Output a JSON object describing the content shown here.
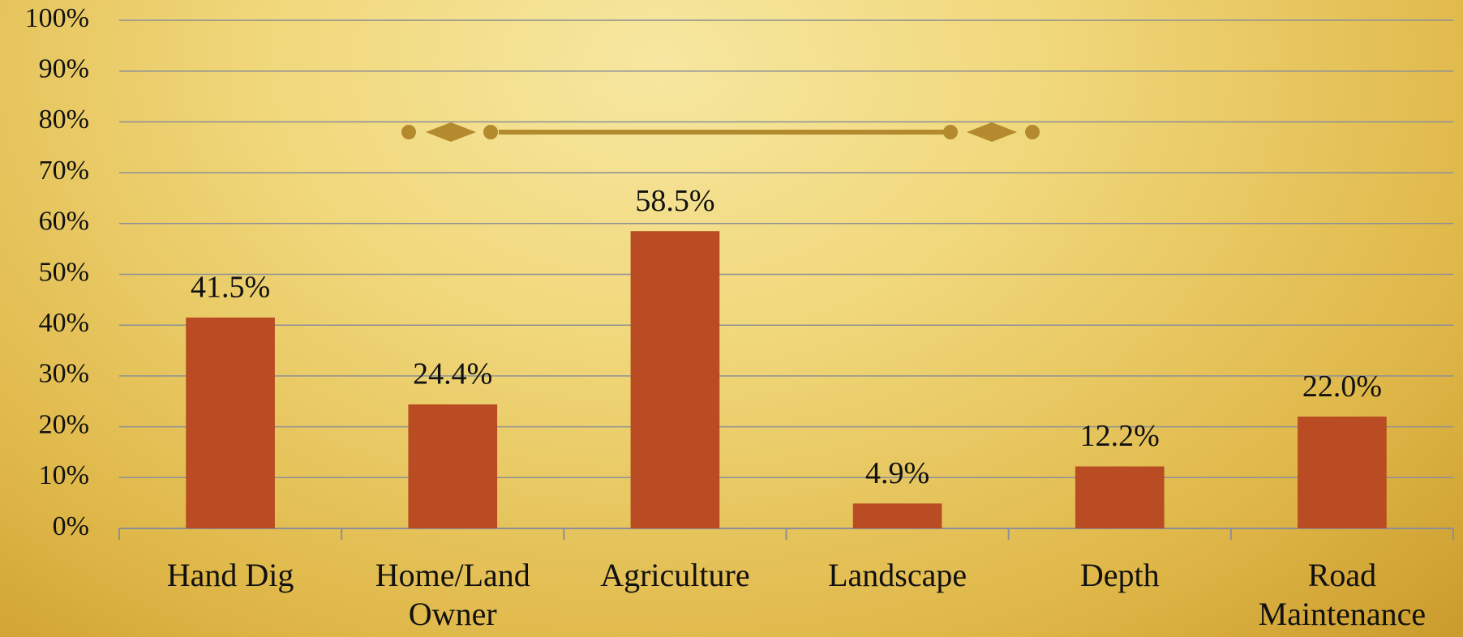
{
  "chart_data": {
    "type": "bar",
    "categories": [
      "Hand Dig",
      "Home/Land Owner",
      "Agriculture",
      "Landscape",
      "Depth",
      "Road Maintenance"
    ],
    "values": [
      41.5,
      24.4,
      58.5,
      4.9,
      12.2,
      22.0
    ],
    "value_labels": [
      "41.5%",
      "24.4%",
      "58.5%",
      "4.9%",
      "12.2%",
      "22.0%"
    ],
    "color": "#b94c22",
    "ylim": [
      0,
      100
    ],
    "yticks": [
      {
        "value": 0,
        "label": "0%"
      },
      {
        "value": 10,
        "label": "10%"
      },
      {
        "value": 20,
        "label": "20%"
      },
      {
        "value": 30,
        "label": "30%"
      },
      {
        "value": 40,
        "label": "40%"
      },
      {
        "value": 50,
        "label": "50%"
      },
      {
        "value": 60,
        "label": "60%"
      },
      {
        "value": 70,
        "label": "70%"
      },
      {
        "value": 80,
        "label": "80%"
      },
      {
        "value": 90,
        "label": "90%"
      },
      {
        "value": 100,
        "label": "100%"
      }
    ],
    "grid": true
  }
}
